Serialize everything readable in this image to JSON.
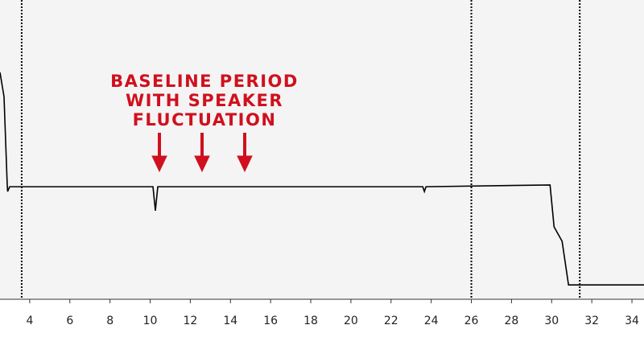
{
  "chart_data": {
    "type": "line",
    "annotation": [
      "BASELINE PERIOD",
      "WITH SPEAKER",
      "FLUCTUATION"
    ],
    "x": [
      2.52,
      2.72,
      2.88,
      2.9,
      3.0,
      10.14,
      10.26,
      10.38,
      23.58,
      23.66,
      23.74,
      29.92,
      30.12,
      30.52,
      30.84,
      34.6
    ],
    "values": [
      75.8,
      67.7,
      38.2,
      36.0,
      37.6,
      37.6,
      29.6,
      37.6,
      37.6,
      36.0,
      37.6,
      38.2,
      24.2,
      19.4,
      4.8,
      4.8
    ],
    "color": "#000000",
    "markers": [
      3.6,
      26,
      31.4
    ],
    "xlim": [
      2.52,
      34.6
    ],
    "ylim": [
      0,
      100
    ],
    "xticks": [
      4,
      6,
      8,
      10,
      12,
      14,
      16,
      18,
      20,
      22,
      24,
      26,
      28,
      30,
      32,
      34
    ]
  }
}
